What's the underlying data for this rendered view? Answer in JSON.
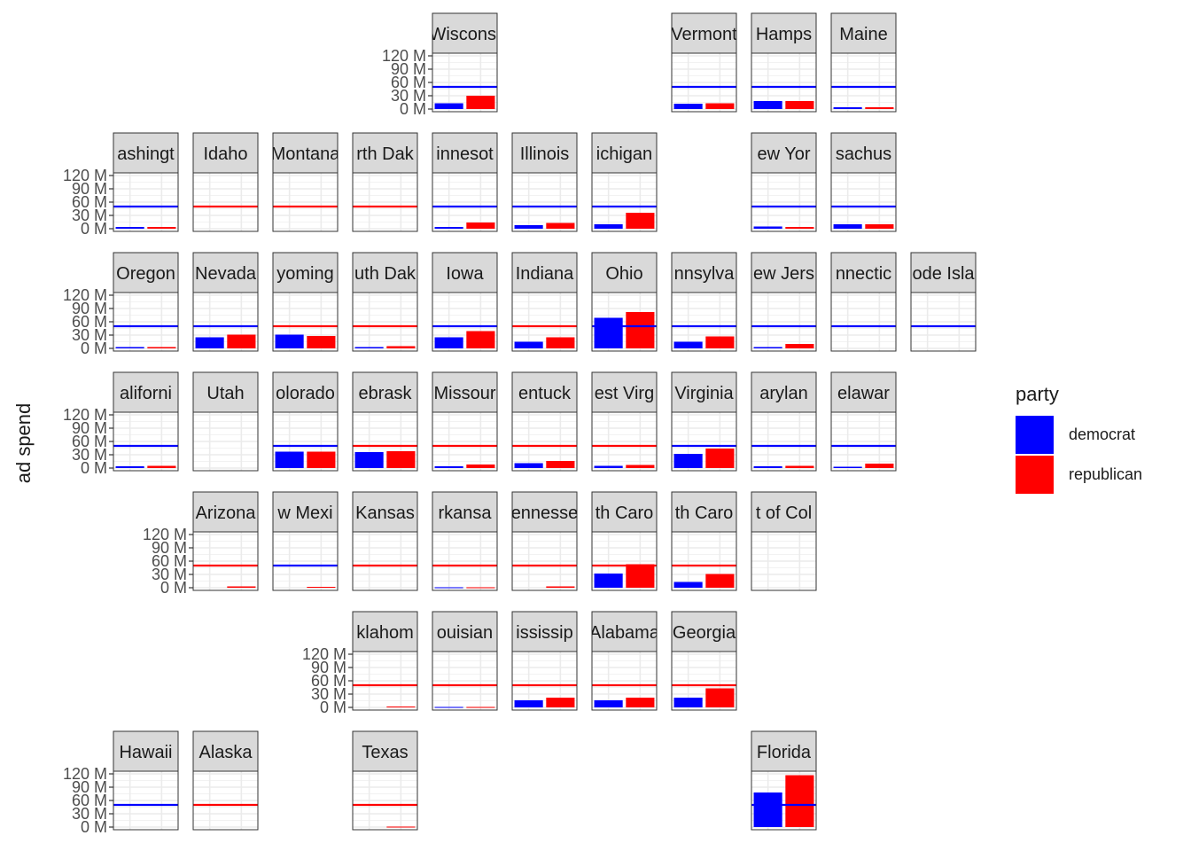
{
  "chart_data": {
    "type": "bar",
    "ylabel": "ad spend",
    "yticks": [
      0,
      30,
      60,
      90,
      120
    ],
    "ytick_labels": [
      "0 M",
      "30 M",
      "60 M",
      "90 M",
      "120 M"
    ],
    "ylim": [
      -6,
      126
    ],
    "grid": true,
    "legend": {
      "title": "party",
      "position": "right",
      "entries": [
        {
          "label": "democrat",
          "color": "#0000ff"
        },
        {
          "label": "republican",
          "color": "#ff0000"
        }
      ]
    },
    "series_names": [
      "democrat",
      "republican"
    ],
    "colors": {
      "democrat": "#0000ff",
      "republican": "#ff0000"
    },
    "reference_line_value": 50,
    "panels": [
      {
        "state": "Wisconsin",
        "strip_label": "Wisconsi",
        "row": 0,
        "col": 5,
        "dem": 13,
        "rep": 30,
        "line": "democrat"
      },
      {
        "state": "Vermont",
        "strip_label": "Vermont",
        "row": 0,
        "col": 8,
        "dem": 12,
        "rep": 13,
        "line": "democrat"
      },
      {
        "state": "New Hampshire",
        "strip_label": "Hamps",
        "row": 0,
        "col": 9,
        "dem": 18,
        "rep": 18,
        "line": "democrat"
      },
      {
        "state": "Maine",
        "strip_label": "Maine",
        "row": 0,
        "col": 10,
        "dem": 4,
        "rep": 4,
        "line": "democrat"
      },
      {
        "state": "Washington",
        "strip_label": "ashingt",
        "row": 1,
        "col": 1,
        "dem": 4,
        "rep": 4,
        "line": "democrat"
      },
      {
        "state": "Idaho",
        "strip_label": "Idaho",
        "row": 1,
        "col": 2,
        "dem": 0,
        "rep": 0,
        "line": "republican"
      },
      {
        "state": "Montana",
        "strip_label": "Montana",
        "row": 1,
        "col": 3,
        "dem": 0,
        "rep": 0,
        "line": "republican"
      },
      {
        "state": "North Dakota",
        "strip_label": "rth Dak",
        "row": 1,
        "col": 4,
        "dem": 0,
        "rep": 0,
        "line": "republican"
      },
      {
        "state": "Minnesota",
        "strip_label": "innesot",
        "row": 1,
        "col": 5,
        "dem": 4,
        "rep": 14,
        "line": "democrat"
      },
      {
        "state": "Illinois",
        "strip_label": "Illinois",
        "row": 1,
        "col": 6,
        "dem": 8,
        "rep": 13,
        "line": "democrat"
      },
      {
        "state": "Michigan",
        "strip_label": "ichigan",
        "row": 1,
        "col": 7,
        "dem": 10,
        "rep": 36,
        "line": "democrat"
      },
      {
        "state": "New York",
        "strip_label": "ew Yor",
        "row": 1,
        "col": 9,
        "dem": 5,
        "rep": 4,
        "line": "democrat"
      },
      {
        "state": "Massachusetts",
        "strip_label": "sachus",
        "row": 1,
        "col": 10,
        "dem": 10,
        "rep": 10,
        "line": "democrat"
      },
      {
        "state": "Oregon",
        "strip_label": "Oregon",
        "row": 2,
        "col": 1,
        "dem": 3,
        "rep": 3,
        "line": "democrat"
      },
      {
        "state": "Nevada",
        "strip_label": "Nevada",
        "row": 2,
        "col": 2,
        "dem": 25,
        "rep": 31,
        "line": "democrat"
      },
      {
        "state": "Wyoming",
        "strip_label": "yoming",
        "row": 2,
        "col": 3,
        "dem": 31,
        "rep": 28,
        "line": "republican"
      },
      {
        "state": "South Dakota",
        "strip_label": "uth Dak",
        "row": 2,
        "col": 4,
        "dem": 3,
        "rep": 5,
        "line": "republican"
      },
      {
        "state": "Iowa",
        "strip_label": "Iowa",
        "row": 2,
        "col": 5,
        "dem": 25,
        "rep": 39,
        "line": "democrat"
      },
      {
        "state": "Indiana",
        "strip_label": "Indiana",
        "row": 2,
        "col": 6,
        "dem": 15,
        "rep": 25,
        "line": "republican"
      },
      {
        "state": "Ohio",
        "strip_label": "Ohio",
        "row": 2,
        "col": 7,
        "dem": 69,
        "rep": 82,
        "line": "democrat"
      },
      {
        "state": "Pennsylvania",
        "strip_label": "nnsylva",
        "row": 2,
        "col": 8,
        "dem": 15,
        "rep": 27,
        "line": "democrat"
      },
      {
        "state": "New Jersey",
        "strip_label": "ew Jers",
        "row": 2,
        "col": 9,
        "dem": 3,
        "rep": 10,
        "line": "democrat"
      },
      {
        "state": "Connecticut",
        "strip_label": "nnectic",
        "row": 2,
        "col": 10,
        "dem": 0,
        "rep": 0,
        "line": "democrat"
      },
      {
        "state": "Rhode Island",
        "strip_label": "ode Isla",
        "row": 2,
        "col": 11,
        "dem": 0,
        "rep": 0,
        "line": "democrat"
      },
      {
        "state": "California",
        "strip_label": "aliforni",
        "row": 3,
        "col": 1,
        "dem": 4,
        "rep": 5,
        "line": "democrat"
      },
      {
        "state": "Utah",
        "strip_label": "Utah",
        "row": 3,
        "col": 2,
        "dem": 0,
        "rep": 0,
        "line": null
      },
      {
        "state": "Colorado",
        "strip_label": "olorado",
        "row": 3,
        "col": 3,
        "dem": 37,
        "rep": 37,
        "line": "democrat"
      },
      {
        "state": "Nebraska",
        "strip_label": "ebrask",
        "row": 3,
        "col": 4,
        "dem": 36,
        "rep": 38,
        "line": "republican"
      },
      {
        "state": "Missouri",
        "strip_label": "Missour",
        "row": 3,
        "col": 5,
        "dem": 4,
        "rep": 8,
        "line": "republican"
      },
      {
        "state": "Kentucky",
        "strip_label": "entuck",
        "row": 3,
        "col": 6,
        "dem": 11,
        "rep": 16,
        "line": "republican"
      },
      {
        "state": "West Virginia",
        "strip_label": "est Virg",
        "row": 3,
        "col": 7,
        "dem": 5,
        "rep": 7,
        "line": "republican"
      },
      {
        "state": "Virginia",
        "strip_label": "Virginia",
        "row": 3,
        "col": 8,
        "dem": 32,
        "rep": 44,
        "line": "democrat"
      },
      {
        "state": "Maryland",
        "strip_label": "arylan",
        "row": 3,
        "col": 9,
        "dem": 4,
        "rep": 5,
        "line": "democrat"
      },
      {
        "state": "Delaware",
        "strip_label": "elawar",
        "row": 3,
        "col": 10,
        "dem": 3,
        "rep": 10,
        "line": "democrat"
      },
      {
        "state": "Arizona",
        "strip_label": "Arizona",
        "row": 4,
        "col": 2,
        "dem": 0,
        "rep": 3,
        "line": "republican"
      },
      {
        "state": "New Mexico",
        "strip_label": "w Mexi",
        "row": 4,
        "col": 3,
        "dem": 0,
        "rep": 2,
        "line": "democrat"
      },
      {
        "state": "Kansas",
        "strip_label": "Kansas",
        "row": 4,
        "col": 4,
        "dem": 0,
        "rep": 0,
        "line": "republican"
      },
      {
        "state": "Arkansas",
        "strip_label": "rkansa",
        "row": 4,
        "col": 5,
        "dem": 1,
        "rep": 1,
        "line": "republican"
      },
      {
        "state": "Tennessee",
        "strip_label": "ennesse",
        "row": 4,
        "col": 6,
        "dem": 0,
        "rep": 3,
        "line": "republican"
      },
      {
        "state": "North Carolina",
        "strip_label": "th Caro",
        "row": 4,
        "col": 7,
        "dem": 32,
        "rep": 53,
        "line": "republican"
      },
      {
        "state": "South Carolina",
        "strip_label": "th Caro",
        "row": 4,
        "col": 8,
        "dem": 13,
        "rep": 31,
        "line": "republican"
      },
      {
        "state": "District of Columbia",
        "strip_label": "t of Col",
        "row": 4,
        "col": 9,
        "dem": 0,
        "rep": 0,
        "line": null
      },
      {
        "state": "Oklahoma",
        "strip_label": "klahom",
        "row": 5,
        "col": 4,
        "dem": 0,
        "rep": 2,
        "line": "republican"
      },
      {
        "state": "Louisiana",
        "strip_label": "ouisian",
        "row": 5,
        "col": 5,
        "dem": 1,
        "rep": 1,
        "line": "republican"
      },
      {
        "state": "Mississippi",
        "strip_label": "ississip",
        "row": 5,
        "col": 6,
        "dem": 16,
        "rep": 22,
        "line": "republican"
      },
      {
        "state": "Alabama",
        "strip_label": "Alabama",
        "row": 5,
        "col": 7,
        "dem": 16,
        "rep": 22,
        "line": "republican"
      },
      {
        "state": "Georgia",
        "strip_label": "Georgia",
        "row": 5,
        "col": 8,
        "dem": 22,
        "rep": 43,
        "line": "republican"
      },
      {
        "state": "Hawaii",
        "strip_label": "Hawaii",
        "row": 6,
        "col": 1,
        "dem": 0,
        "rep": 0,
        "line": "democrat"
      },
      {
        "state": "Alaska",
        "strip_label": "Alaska",
        "row": 6,
        "col": 2,
        "dem": 0,
        "rep": 0,
        "line": "republican"
      },
      {
        "state": "Texas",
        "strip_label": "Texas",
        "row": 6,
        "col": 4,
        "dem": 0,
        "rep": 1,
        "line": "republican"
      },
      {
        "state": "Florida",
        "strip_label": "Florida",
        "row": 6,
        "col": 9,
        "dem": 78,
        "rep": 117,
        "line": "democrat"
      }
    ],
    "axis_rows": [
      {
        "row": 0,
        "col": 5
      },
      {
        "row": 1,
        "col": 1
      },
      {
        "row": 2,
        "col": 1
      },
      {
        "row": 3,
        "col": 1
      },
      {
        "row": 4,
        "col": 2
      },
      {
        "row": 5,
        "col": 4
      },
      {
        "row": 6,
        "col": 1
      }
    ]
  }
}
